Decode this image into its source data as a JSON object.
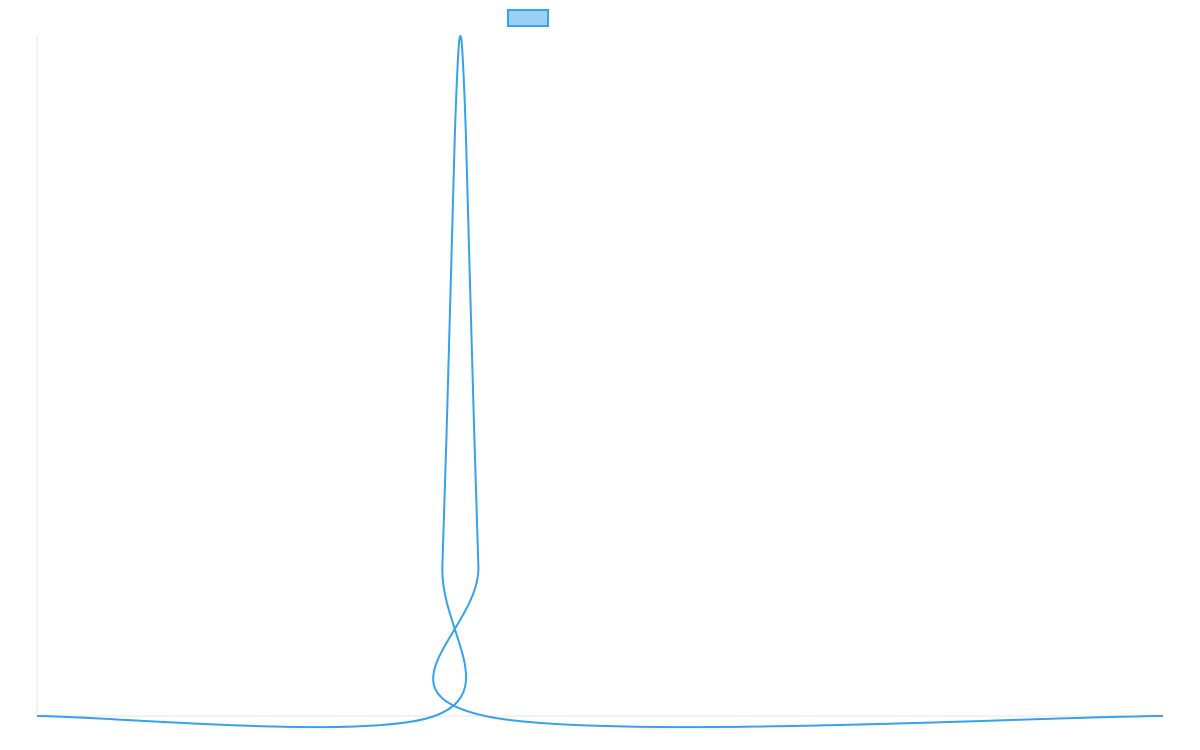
{
  "chart_data": {
    "type": "line",
    "title": "",
    "xlabel": "",
    "ylabel": "",
    "grid": false,
    "legend": {
      "placement": "top-center",
      "marker": "box"
    },
    "xlim": [
      0,
      100
    ],
    "ylim": [
      0,
      1
    ],
    "series": [
      {
        "color": "#36a2eb",
        "fill_color": "#9ad0f5",
        "points": [
          {
            "x": 0,
            "y": 0
          },
          {
            "x": 35.3,
            "y": 0
          },
          {
            "x": 36.0,
            "y": 0.22
          },
          {
            "x": 36.6,
            "y": 0.55
          },
          {
            "x": 37.1,
            "y": 0.85
          },
          {
            "x": 37.4,
            "y": 0.97
          },
          {
            "x": 37.6,
            "y": 1.0
          },
          {
            "x": 37.8,
            "y": 0.97
          },
          {
            "x": 38.1,
            "y": 0.85
          },
          {
            "x": 38.6,
            "y": 0.55
          },
          {
            "x": 39.2,
            "y": 0.22
          },
          {
            "x": 39.8,
            "y": 0
          },
          {
            "x": 100,
            "y": 0
          }
        ]
      }
    ]
  }
}
